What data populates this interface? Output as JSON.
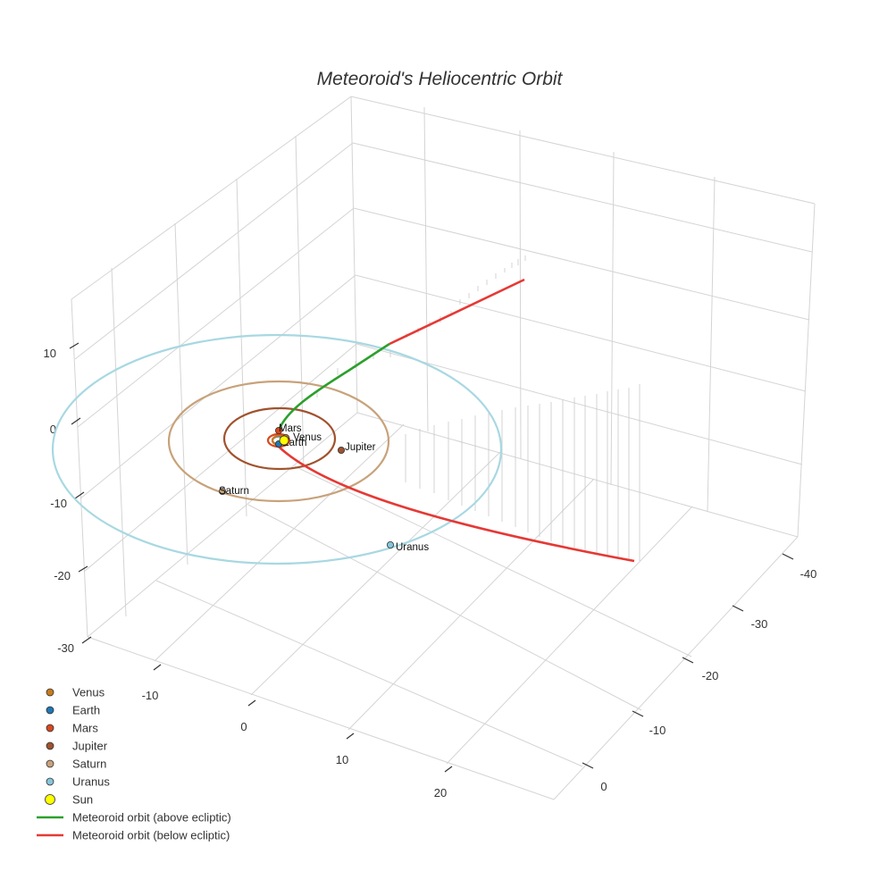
{
  "chart_data": {
    "type": "scatter3d",
    "title": "Meteoroid's Heliocentric Orbit",
    "axes": {
      "x": {
        "label": "",
        "ticks": [
          -10,
          0,
          10,
          20
        ]
      },
      "y": {
        "label": "",
        "ticks": [
          -40,
          -30,
          -20,
          -10,
          0
        ]
      },
      "z": {
        "label": "",
        "ticks": [
          -30,
          -20,
          -10,
          0,
          10
        ]
      }
    },
    "grid": true,
    "legend_position": "bottom-left",
    "planets": [
      {
        "name": "Venus",
        "color": "#c87a1e",
        "orbit_radius": 0.72
      },
      {
        "name": "Earth",
        "color": "#1f77b4",
        "orbit_radius": 1.0
      },
      {
        "name": "Mars",
        "color": "#d8481e",
        "orbit_radius": 1.52
      },
      {
        "name": "Jupiter",
        "color": "#a0522d",
        "orbit_radius": 5.2
      },
      {
        "name": "Saturn",
        "color": "#c8a27a",
        "orbit_radius": 9.5
      },
      {
        "name": "Uranus",
        "color": "#86c5da",
        "orbit_radius": 19.2
      }
    ],
    "sun": {
      "name": "Sun",
      "color": "#ffff00"
    },
    "series": [
      {
        "name": "Meteoroid orbit (above ecliptic)",
        "color": "#2ca02c"
      },
      {
        "name": "Meteoroid orbit (below ecliptic)",
        "color": "#e53935"
      }
    ],
    "orbit_ring_colors": [
      "#1f77b4",
      "#c87a1e",
      "#d8481e",
      "#a0522d",
      "#c8a27a",
      "#a8d8e2"
    ]
  }
}
